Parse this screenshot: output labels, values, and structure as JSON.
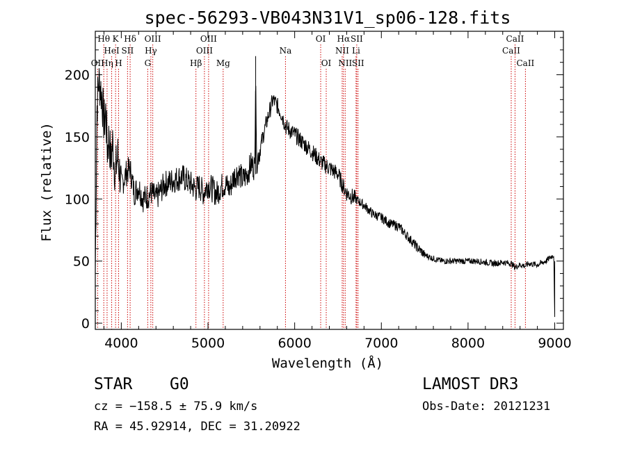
{
  "chart_data": {
    "type": "line",
    "title": "spec-56293-VB043N31V1_sp06-128.fits",
    "xlabel": "Wavelength (Å)",
    "ylabel": "Flux (relative)",
    "xlim": [
      3700,
      9100
    ],
    "ylim": [
      -5,
      235
    ],
    "xticks": [
      4000,
      5000,
      6000,
      7000,
      8000,
      9000
    ],
    "yticks": [
      0,
      50,
      100,
      150,
      200
    ],
    "series": [
      {
        "name": "flux",
        "x": [
          3700,
          3720,
          3740,
          3760,
          3780,
          3800,
          3820,
          3840,
          3860,
          3880,
          3900,
          3930,
          3960,
          4000,
          4050,
          4100,
          4150,
          4200,
          4250,
          4300,
          4350,
          4400,
          4500,
          4600,
          4700,
          4800,
          4860,
          4900,
          4950,
          5000,
          5050,
          5100,
          5150,
          5200,
          5250,
          5300,
          5350,
          5400,
          5450,
          5500,
          5540,
          5550,
          5560,
          5600,
          5650,
          5700,
          5750,
          5800,
          5850,
          5900,
          5950,
          6000,
          6100,
          6200,
          6300,
          6400,
          6500,
          6560,
          6600,
          6700,
          6800,
          6900,
          7000,
          7100,
          7200,
          7300,
          7400,
          7500,
          7600,
          7700,
          7800,
          7900,
          8000,
          8100,
          8200,
          8300,
          8400,
          8500,
          8540,
          8600,
          8660,
          8700,
          8800,
          8900,
          8950,
          8990,
          9000
        ],
        "values": [
          40,
          175,
          195,
          190,
          180,
          160,
          170,
          140,
          150,
          130,
          145,
          120,
          135,
          110,
          120,
          125,
          105,
          110,
          100,
          102,
          105,
          100,
          112,
          115,
          118,
          112,
          108,
          110,
          105,
          112,
          108,
          104,
          110,
          112,
          108,
          118,
          122,
          115,
          120,
          128,
          125,
          215,
          130,
          140,
          155,
          168,
          180,
          175,
          168,
          158,
          155,
          152,
          145,
          138,
          130,
          125,
          120,
          110,
          105,
          100,
          95,
          88,
          85,
          80,
          78,
          70,
          62,
          55,
          52,
          50,
          50,
          50,
          50,
          50,
          49,
          48,
          49,
          48,
          45,
          47,
          46,
          48,
          47,
          50,
          53,
          55,
          5
        ]
      }
    ],
    "lines": [
      {
        "name": "OII",
        "wave": 3727,
        "row": 2
      },
      {
        "name": "Hθ",
        "wave": 3798,
        "row": 0
      },
      {
        "name": "Hη",
        "wave": 3836,
        "row": 2
      },
      {
        "name": "HeI",
        "wave": 3889,
        "row": 1
      },
      {
        "name": "K",
        "wave": 3934,
        "row": 0
      },
      {
        "name": "H",
        "wave": 3969,
        "row": 2
      },
      {
        "name": "SII",
        "wave": 4072,
        "row": 1
      },
      {
        "name": "Hδ",
        "wave": 4102,
        "row": 0
      },
      {
        "name": "Hγ",
        "wave": 4341,
        "row": 1
      },
      {
        "name": "OIII",
        "wave": 4363,
        "row": 0
      },
      {
        "name": "G",
        "wave": 4305,
        "row": 2
      },
      {
        "name": "Hβ",
        "wave": 4861,
        "row": 2
      },
      {
        "name": "OIII",
        "wave": 4959,
        "row": 1
      },
      {
        "name": "OIII",
        "wave": 5007,
        "row": 0
      },
      {
        "name": "Mg",
        "wave": 5175,
        "row": 2
      },
      {
        "name": "Na",
        "wave": 5894,
        "row": 1
      },
      {
        "name": "OI",
        "wave": 6300,
        "row": 0
      },
      {
        "name": "OI",
        "wave": 6364,
        "row": 2
      },
      {
        "name": "NII",
        "wave": 6548,
        "row": 1
      },
      {
        "name": "Hα",
        "wave": 6563,
        "row": 0
      },
      {
        "name": "NII",
        "wave": 6583,
        "row": 2
      },
      {
        "name": "Li",
        "wave": 6708,
        "row": 1
      },
      {
        "name": "SII",
        "wave": 6716,
        "row": 0
      },
      {
        "name": "SII",
        "wave": 6731,
        "row": 2
      },
      {
        "name": "CaII",
        "wave": 8498,
        "row": 1
      },
      {
        "name": "CaII",
        "wave": 8542,
        "row": 0
      },
      {
        "name": "CaII",
        "wave": 8662,
        "row": 2
      }
    ]
  },
  "info": {
    "class": "STAR",
    "subclass": "G0",
    "survey": "LAMOST DR3",
    "cz": "cz = −158.5 ± 75.9 km/s",
    "obs_date": "Obs-Date: 20121231",
    "radec": "RA =  45.92914, DEC =  31.20922"
  },
  "colors": {
    "axes": "#000000",
    "spectrum": "#000000",
    "line_markers": "#cc0000"
  }
}
